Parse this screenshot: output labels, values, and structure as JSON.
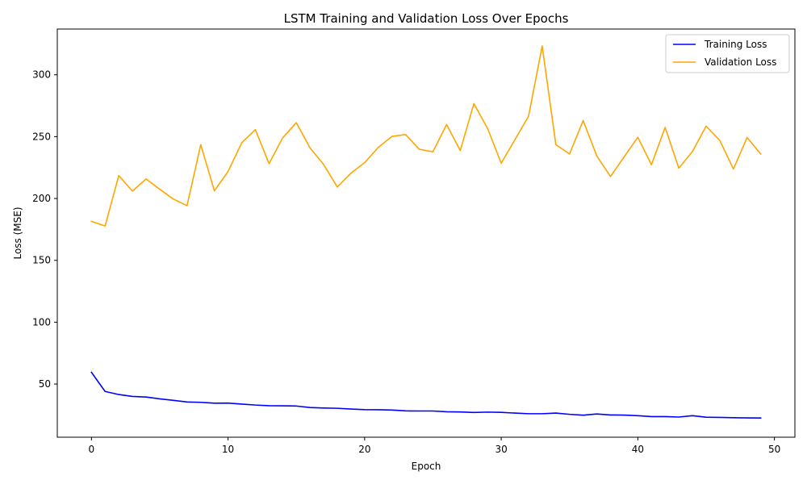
{
  "chart_data": {
    "type": "line",
    "title": "LSTM Training and Validation Loss Over Epochs",
    "xlabel": "Epoch",
    "ylabel": "Loss (MSE)",
    "xlim": [
      -2.5,
      51.5
    ],
    "ylim": [
      7,
      337
    ],
    "x_ticks": [
      0,
      10,
      20,
      30,
      40,
      50
    ],
    "y_ticks": [
      50,
      100,
      150,
      200,
      250,
      300
    ],
    "grid": false,
    "legend_position": "top-right",
    "x": [
      0,
      1,
      2,
      3,
      4,
      5,
      6,
      7,
      8,
      9,
      10,
      11,
      12,
      13,
      14,
      15,
      16,
      17,
      18,
      19,
      20,
      21,
      22,
      23,
      24,
      25,
      26,
      27,
      28,
      29,
      30,
      31,
      32,
      33,
      34,
      35,
      36,
      37,
      38,
      39,
      40,
      41,
      42,
      43,
      44,
      45,
      46,
      47,
      48,
      49
    ],
    "series": [
      {
        "name": "Training Loss",
        "color": "#0000ff",
        "values": [
          59.5,
          44.0,
          41.5,
          40.0,
          39.5,
          38.0,
          36.8,
          35.5,
          35.2,
          34.5,
          34.6,
          33.8,
          33.0,
          32.5,
          32.4,
          32.2,
          31.0,
          30.6,
          30.4,
          29.8,
          29.3,
          29.2,
          29.0,
          28.3,
          28.2,
          28.2,
          27.6,
          27.4,
          27.0,
          27.3,
          27.1,
          26.5,
          26.0,
          26.0,
          26.5,
          25.5,
          24.8,
          25.8,
          25.0,
          24.9,
          24.4,
          23.7,
          23.7,
          23.3,
          24.4,
          23.2,
          23.0,
          22.8,
          22.6,
          22.5
        ]
      },
      {
        "name": "Validation Loss",
        "color": "#ffa500",
        "values": [
          181.5,
          177.8,
          218.5,
          206.0,
          215.8,
          207.5,
          199.5,
          194.2,
          243.5,
          206.2,
          221.8,
          245.0,
          255.7,
          228.2,
          249.0,
          261.3,
          241.0,
          227.5,
          209.3,
          220.5,
          229.0,
          241.3,
          250.2,
          251.7,
          239.8,
          237.8,
          259.8,
          238.8,
          276.7,
          256.7,
          228.5,
          247.5,
          266.5,
          323.3,
          243.5,
          236.0,
          263.0,
          234.3,
          217.8,
          233.7,
          249.5,
          227.3,
          257.5,
          224.5,
          238.0,
          258.5,
          247.0,
          223.8,
          249.3,
          236.0
        ]
      }
    ]
  }
}
